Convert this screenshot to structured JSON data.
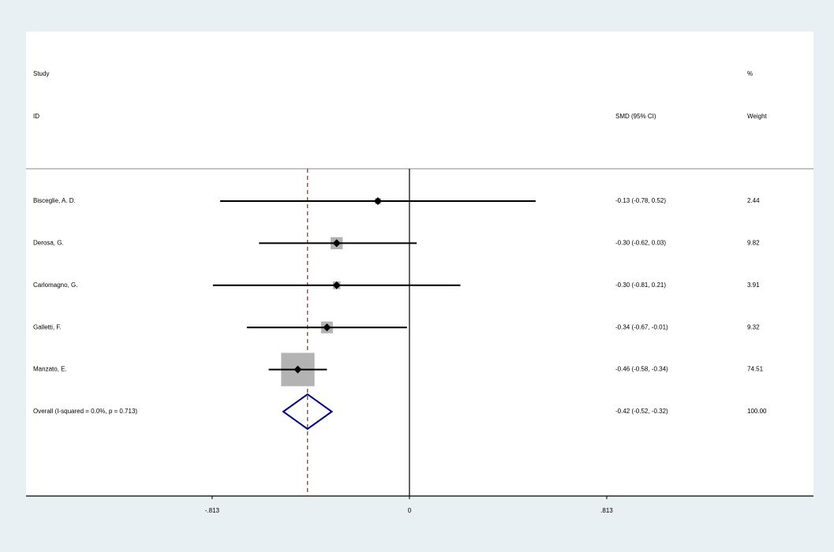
{
  "chart_data": {
    "type": "forest",
    "header": {
      "study": "Study",
      "id": "ID",
      "effect": "SMD (95% CI)",
      "percent": "%",
      "weight": "Weight"
    },
    "studies": [
      "Bisceglie, A. D.",
      "Derosa, G.",
      "Carlomagno, G.",
      "Galletti, F.",
      "Manzato, E."
    ],
    "estimate": [
      -0.13,
      -0.3,
      -0.3,
      -0.34,
      -0.46
    ],
    "lower": [
      -0.78,
      -0.62,
      -0.81,
      -0.67,
      -0.58
    ],
    "upper": [
      0.52,
      0.03,
      0.21,
      -0.01,
      -0.34
    ],
    "ci_labels": [
      "-0.13 (-0.78, 0.52)",
      "-0.30 (-0.62, 0.03)",
      "-0.30 (-0.81, 0.21)",
      "-0.34 (-0.67, -0.01)",
      "-0.46 (-0.58, -0.34)"
    ],
    "weights": [
      2.44,
      9.82,
      3.91,
      9.32,
      74.51
    ],
    "weight_labels": [
      "2.44",
      "9.82",
      "3.91",
      "9.32",
      "74.51"
    ],
    "overall": {
      "label": "Overall  (I-squared = 0.0%, p = 0.713)",
      "estimate": -0.42,
      "lower": -0.52,
      "upper": -0.32,
      "ci_label": "-0.42 (-0.52, -0.32)",
      "weight": 100,
      "weight_label": "100.00"
    },
    "xlim": [
      -1.58,
      1.665
    ],
    "xticks": [
      {
        "value": -0.813,
        "label": "-.813"
      },
      0,
      {
        "value": 0.813,
        "label": ".813"
      }
    ],
    "marker_color": "#b3b3b3",
    "line_color": "#000000",
    "diamond_color": "#000080",
    "reference_color": "#a02020"
  }
}
